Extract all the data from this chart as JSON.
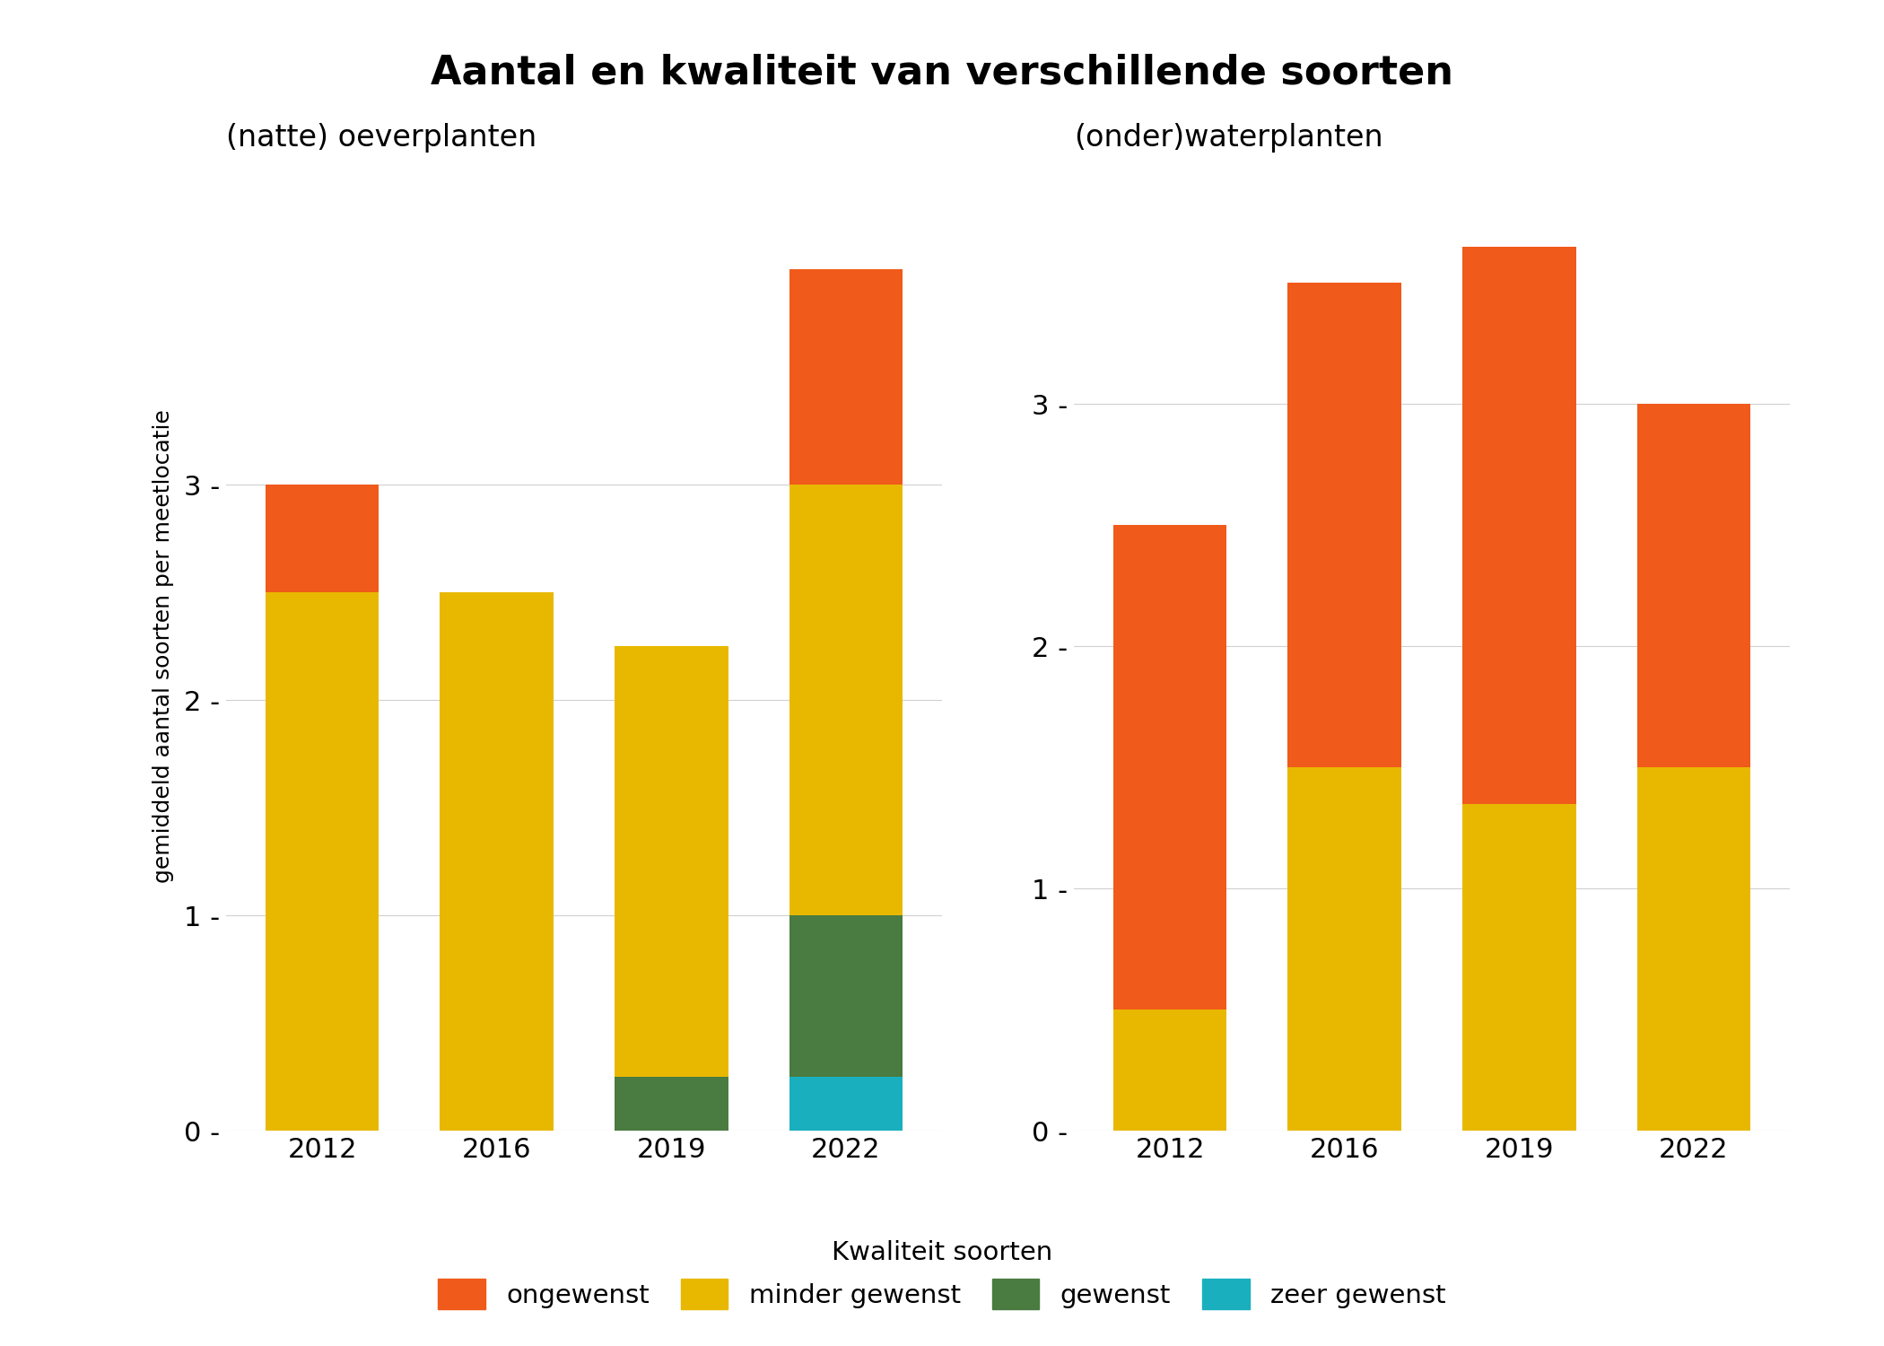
{
  "title": "Aantal en kwaliteit van verschillende soorten",
  "subtitle_left": "(natte) oeverplanten",
  "subtitle_right": "(onder)waterplanten",
  "ylabel": "gemiddeld aantal soorten per meetlocatie",
  "colors": {
    "ongewenst": "#F05A1A",
    "minder_gewenst": "#E8B800",
    "gewenst": "#4A7B40",
    "zeer_gewenst": "#1AAFBE"
  },
  "legend_label_title": "Kwaliteit soorten",
  "legend_labels": [
    "ongewenst",
    "minder gewenst",
    "gewenst",
    "zeer gewenst"
  ],
  "left": {
    "years": [
      "2012",
      "2016",
      "2019",
      "2022"
    ],
    "zeer_gewenst": [
      0.0,
      0.0,
      0.0,
      0.25
    ],
    "gewenst": [
      0.0,
      0.0,
      0.25,
      0.75
    ],
    "minder_gewenst": [
      2.5,
      2.5,
      2.0,
      2.0
    ],
    "ongewenst": [
      0.5,
      0.0,
      0.0,
      1.0
    ]
  },
  "right": {
    "years": [
      "2012",
      "2016",
      "2019",
      "2022"
    ],
    "zeer_gewenst": [
      0.0,
      0.0,
      0.0,
      0.0
    ],
    "gewenst": [
      0.0,
      0.0,
      0.0,
      0.0
    ],
    "minder_gewenst": [
      0.5,
      1.5,
      1.35,
      1.5
    ],
    "ongewenst": [
      2.0,
      2.0,
      2.3,
      1.5
    ]
  },
  "left_ylim": [
    0,
    4.5
  ],
  "right_ylim": [
    0,
    4.0
  ],
  "yticks_left": [
    0,
    1,
    2,
    3
  ],
  "yticks_right": [
    0,
    1,
    2,
    3
  ],
  "background_color": "#FFFFFF",
  "grid_color": "#D0D0D0"
}
